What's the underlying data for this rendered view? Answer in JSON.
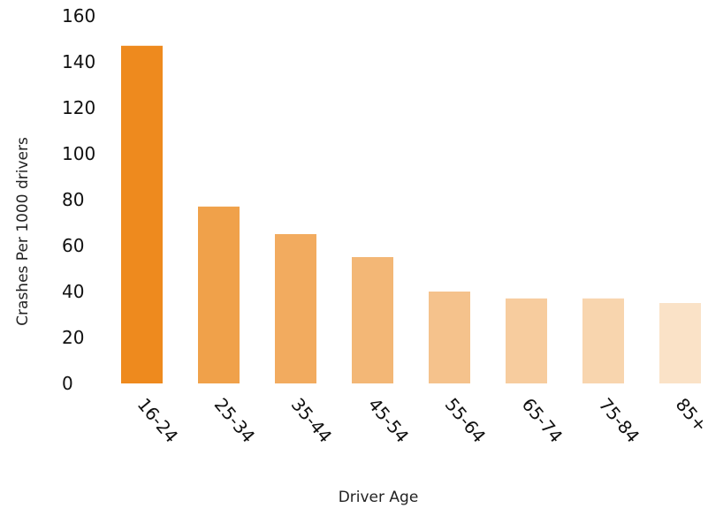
{
  "chart_data": {
    "type": "bar",
    "title": "",
    "xlabel": "Driver Age",
    "ylabel": "Crashes Per 1000 drivers",
    "categories": [
      "16-24",
      "25-34",
      "35-44",
      "45-54",
      "55-64",
      "65-74",
      "75-84",
      "85+"
    ],
    "values": [
      147,
      77,
      65,
      55,
      40,
      37,
      37,
      35
    ],
    "ylim": [
      0,
      160
    ],
    "yticks": [
      "0",
      "20",
      "40",
      "60",
      "80",
      "100",
      "120",
      "140",
      "160"
    ],
    "grid": false,
    "legend": "none",
    "colors": [
      "#ee8a1e",
      "#f0a14a",
      "#f2ab5f",
      "#f3b776",
      "#f5c28c",
      "#f7cc9e",
      "#f8d5ae",
      "#fae2c7"
    ]
  }
}
